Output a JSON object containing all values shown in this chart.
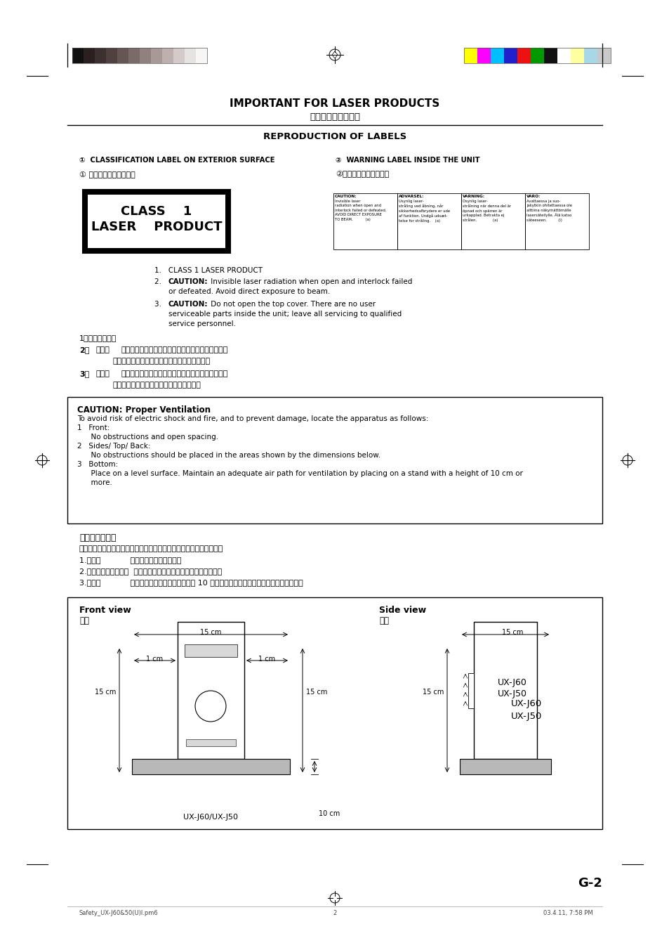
{
  "bg_color": "#ffffff",
  "title_main": "IMPORTANT FOR LASER PRODUCTS",
  "title_chinese": "镑射产品的重要说明",
  "subtitle": "REPRODUCTION OF LABELS",
  "label1_en": "①  CLASSIFICATION LABEL ON EXTERIOR SURFACE",
  "label2_en": "②  WARNING LABEL INSIDE THE UNIT",
  "label1_cn": "① 位于机表的分类说明文",
  "label2_cn": "②位于机内的警告说明文",
  "page_label": "G-2",
  "footer_left": "Safety_UX-J60&50(U)l.pm6",
  "footer_mid": "2",
  "footer_right": "03.4.11, 7:58 PM",
  "gray_colors": [
    "#111111",
    "#2a2020",
    "#3d3030",
    "#504040",
    "#665555",
    "#7a6a6a",
    "#908080",
    "#a89898",
    "#bfb0b0",
    "#d5caca",
    "#e8e3e3",
    "#f8f5f5"
  ],
  "color_strip": [
    "#ffff00",
    "#ff00ff",
    "#00bfff",
    "#2020cc",
    "#ee1111",
    "#009900",
    "#111111",
    "#ffffff",
    "#ffffa0",
    "#a8d8e8",
    "#c8c8c8"
  ],
  "caution_title": "CAUTION: Proper Ventilation",
  "caution_lines": [
    "To avoid risk of electric shock and fire, and to prevent damage, locate the apparatus as follows:",
    "1   Front:",
    "      No obstructions and open spacing.",
    "2   Sides/ Top/ Back:",
    "      No obstructions should be placed in the areas shown by the dimensions below.",
    "3   Bottom:",
    "      Place on a level surface. Maintain an adequate air path for ventilation by placing on a stand with a height of 10 cm or",
    "      more."
  ],
  "cn_caution_lines": [
    "注意：正确通风",
    "为避免发生触电和火灾的危险，及防止本机受损，请将本机如下放置：",
    "1.前面：            没有障糕物及地方开阔。",
    "2.侧面／顶面／背面：  在图中所示范围中，不应放置任何障糕物。",
    "3.底部：            放置在水平面上。放置在一个高 10 厘米或以上的台面上，以保持足够的通风道。"
  ]
}
